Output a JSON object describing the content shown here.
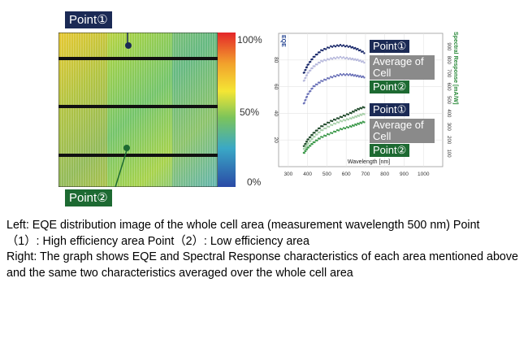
{
  "left_image": {
    "callout_top": "Point①",
    "callout_bottom": "Point②",
    "colorbar_ticks": [
      "100%",
      "50%",
      "0%"
    ]
  },
  "chart_data": {
    "type": "scatter",
    "xlabel": "Wavelength [nm]",
    "ylabel_left": "EQE",
    "ylabel_right": "Spectral Response [mA/W]",
    "xlim": [
      250,
      1100
    ],
    "x_ticks": [
      300,
      400,
      500,
      600,
      700,
      800,
      900,
      1000
    ],
    "y_ticks_left": [
      20,
      40,
      60,
      80
    ],
    "y_ticks_right": [
      100,
      200,
      300,
      400,
      500,
      600,
      700,
      800,
      900
    ],
    "legend_top": [
      "Point①",
      "Average of Cell",
      "Point②"
    ],
    "legend_bottom": [
      "Point①",
      "Average of Cell",
      "Point②"
    ],
    "series": [
      {
        "name": "Point①",
        "group": "EQE",
        "color": "#1b2a6b",
        "x": [
          380,
          400,
          430,
          470,
          520,
          570,
          620,
          660,
          700
        ],
        "y": [
          70,
          76,
          82,
          87,
          90,
          91,
          90,
          88,
          85
        ]
      },
      {
        "name": "Average of Cell",
        "group": "EQE",
        "color": "#b7b9dc",
        "x": [
          380,
          400,
          430,
          470,
          520,
          570,
          620,
          660,
          700
        ],
        "y": [
          64,
          70,
          75,
          79,
          81,
          82,
          81,
          80,
          78
        ]
      },
      {
        "name": "Point②",
        "group": "EQE",
        "color": "#6b72b8",
        "x": [
          380,
          400,
          430,
          470,
          520,
          570,
          620,
          660,
          700
        ],
        "y": [
          47,
          54,
          60,
          64,
          67,
          69,
          69,
          68,
          67
        ]
      },
      {
        "name": "Point①",
        "group": "Spectral Response",
        "color": "#1f4a2a",
        "x": [
          380,
          400,
          430,
          470,
          520,
          570,
          620,
          660,
          700
        ],
        "y": [
          15,
          20,
          25,
          30,
          34,
          37,
          40,
          43,
          45
        ]
      },
      {
        "name": "Average of Cell",
        "group": "Spectral Response",
        "color": "#a6cfa8",
        "x": [
          380,
          400,
          430,
          470,
          520,
          570,
          620,
          660,
          700
        ],
        "y": [
          13,
          17,
          22,
          27,
          31,
          34,
          36,
          38,
          40
        ]
      },
      {
        "name": "Point②",
        "group": "Spectral Response",
        "color": "#3e9a4c",
        "x": [
          380,
          400,
          430,
          470,
          520,
          570,
          620,
          660,
          700
        ],
        "y": [
          10,
          14,
          18,
          22,
          25,
          28,
          30,
          32,
          34
        ]
      }
    ]
  },
  "caption": {
    "line1": "Left: EQE distribution image of the whole cell area (measurement wavelength 500 nm) Point",
    "line2": "（1）: High efficiency area Point（2）: Low efficiency area",
    "line3": "Right: The graph shows EQE and Spectral Response characteristics of each area mentioned above and the same two characteristics averaged over the whole cell area"
  }
}
